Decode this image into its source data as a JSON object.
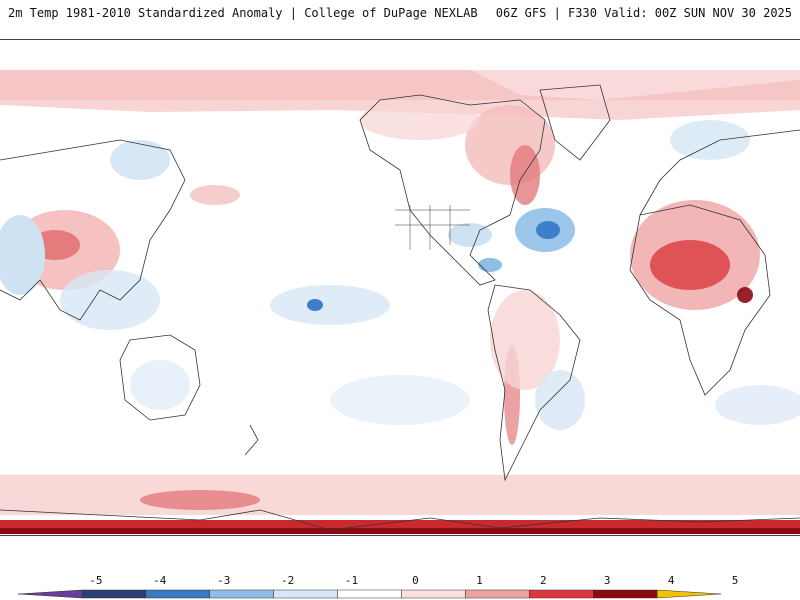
{
  "header": {
    "left_title": "2m Temp 1981-2010 Standardized Anomaly | College of DuPage NEXLAB",
    "right_title": "06Z GFS | F330 Valid: 00Z SUN NOV 30 2025"
  },
  "colorbar": {
    "ticks": [
      "-5",
      "-4",
      "-3",
      "-2",
      "-1",
      "0",
      "1",
      "2",
      "3",
      "4",
      "5"
    ],
    "colors": [
      "#6a3d9a",
      "#2b3f73",
      "#3a79c4",
      "#8fbde6",
      "#d6e6f5",
      "#ffffff",
      "#fbe0e0",
      "#eea1a1",
      "#d9393f",
      "#8c0a14",
      "#f2c200"
    ]
  }
}
